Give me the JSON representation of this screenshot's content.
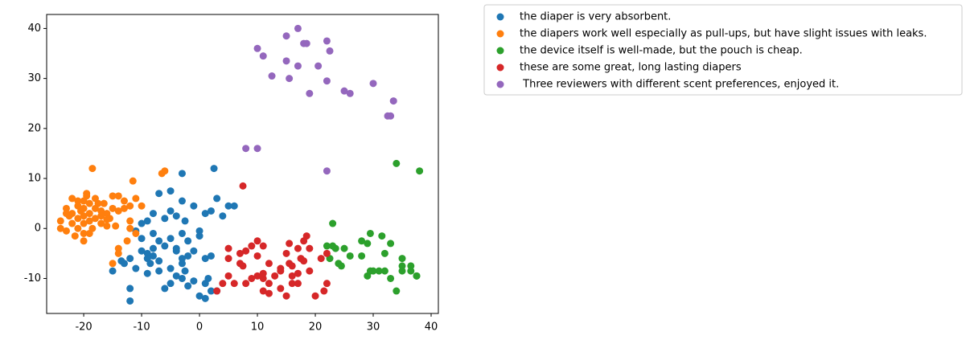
{
  "chart_data": {
    "type": "scatter",
    "xlim": [
      -26.4,
      41.25
    ],
    "ylim": [
      -17.0,
      42.8
    ],
    "xticks": [
      -20,
      -10,
      0,
      10,
      20,
      30,
      40
    ],
    "yticks": [
      -10,
      0,
      10,
      20,
      30,
      40
    ],
    "series": [
      {
        "name": "the diaper is very absorbent.",
        "color": "#1f77b4",
        "x": [
          -3,
          2.5,
          -5,
          -7,
          -3,
          -1,
          3,
          1,
          2,
          -9,
          -8,
          -6,
          -5,
          -4,
          -2.5,
          -10,
          -11,
          -10,
          -8,
          -7,
          -5,
          -3,
          0,
          0,
          -2,
          -4,
          -6,
          -8,
          -9,
          -10,
          -12,
          -13,
          -11,
          -9,
          -7,
          -5,
          -3,
          -2,
          -1,
          1,
          2,
          -3,
          -2.5,
          -4,
          -6,
          -5,
          -3,
          -1,
          -2,
          0,
          1,
          1,
          1.5,
          2,
          -12,
          -12,
          -15,
          -13.5,
          5,
          4,
          6,
          -8,
          -9,
          -8.5,
          -7,
          -4,
          3
        ],
        "y": [
          11,
          12,
          7.5,
          7,
          5.5,
          4.5,
          6,
          3,
          3.5,
          1.5,
          3,
          2,
          3.5,
          2.5,
          1.5,
          1,
          -0.5,
          -2,
          -1,
          -2.5,
          -2,
          -1,
          -0.5,
          -1.5,
          -2.5,
          -4,
          -3.5,
          -4,
          -5,
          -4.5,
          -6,
          -7,
          -8,
          -9,
          -6.5,
          -8,
          -6,
          -5.5,
          -4.5,
          -6,
          -5.5,
          -7,
          -8.5,
          -9.5,
          -12,
          -11,
          -10,
          -10.5,
          -11.5,
          -13.5,
          -14,
          -11,
          -10,
          -12.5,
          -14.5,
          -12,
          -8.5,
          -6.5,
          4.5,
          2.5,
          4.5,
          -5.5,
          -6,
          -7,
          -8.5,
          -4.5,
          -12.5
        ]
      },
      {
        "name": "the diapers work well especially as pull-ups, but have slight issues with leaks.",
        "color": "#ff7f0e",
        "x": [
          -18.5,
          -11.5,
          -6,
          -6.5,
          -24,
          -24,
          -23,
          -22,
          -22,
          -21,
          -21,
          -22,
          -20,
          -20,
          -20,
          -20,
          -20,
          -19.5,
          -19,
          -19,
          -19,
          -18.5,
          -18,
          -18,
          -17,
          -17,
          -16.5,
          -16,
          -16,
          -15,
          -15,
          -14,
          -14,
          -13,
          -13,
          -12,
          -12,
          -11,
          -10,
          -12.5,
          -12,
          -14,
          -14,
          -15,
          -11,
          -21,
          -22.5,
          -23,
          -21.5,
          -23,
          -17.5,
          -18,
          -19,
          -20.5,
          -17,
          -15.5,
          -16,
          -21,
          -20,
          -19.5,
          -14.5
        ],
        "y": [
          12,
          9.5,
          11.5,
          11,
          1.5,
          0,
          -0.5,
          1,
          3,
          2,
          5.5,
          6,
          4,
          2.5,
          1,
          -1,
          -2.5,
          6.5,
          5,
          3,
          1.5,
          0,
          4,
          2,
          3.5,
          1,
          5,
          3,
          0.5,
          6.5,
          4,
          6.5,
          3.5,
          5.5,
          4,
          4.5,
          1.5,
          6,
          4.5,
          -2.5,
          0,
          -4,
          -5,
          -7,
          -1,
          0,
          2.5,
          3,
          -1.5,
          4,
          5,
          6,
          -1,
          3.5,
          2.5,
          2,
          1.8,
          4.5,
          5.5,
          7,
          0.5
        ]
      },
      {
        "name": "the device itself is well-made, but the pouch is cheap.",
        "color": "#2ca02c",
        "x": [
          34,
          38,
          23,
          22,
          23,
          23.5,
          25,
          26,
          22.5,
          24,
          24.5,
          28,
          29,
          29.5,
          31.5,
          33,
          32,
          35,
          35,
          35,
          36.5,
          36.5,
          37.5,
          37.5,
          33,
          34,
          30,
          31,
          32,
          29.5,
          29,
          28
        ],
        "y": [
          13,
          11.5,
          1,
          -3.5,
          -3.5,
          -4,
          -4,
          -5.5,
          -6,
          -7,
          -7.5,
          -2.5,
          -3,
          -1,
          -1.5,
          -3,
          -5,
          -6,
          -7.5,
          -8.5,
          -7.5,
          -8.5,
          -9.5,
          -9.5,
          -10,
          -12.5,
          -8.5,
          -8.5,
          -8.5,
          -8.5,
          -9.5,
          -5.5
        ]
      },
      {
        "name": "these are some great, long lasting diapers",
        "color": "#d62728",
        "x": [
          7.5,
          5,
          7,
          8,
          9,
          10,
          11,
          5,
          7,
          7.5,
          10,
          12,
          14,
          15,
          15.5,
          17,
          18,
          18.5,
          19,
          15.5,
          16,
          17,
          17.5,
          18,
          19,
          14,
          13,
          12,
          11,
          10,
          9,
          8,
          6,
          5,
          11,
          12,
          14,
          15,
          17,
          16,
          20,
          21.5,
          22,
          21,
          22,
          4,
          3,
          11,
          16
        ],
        "y": [
          8.5,
          -4,
          -5,
          -4.5,
          -3.5,
          -2.5,
          -3.5,
          -6,
          -7,
          -7.5,
          -5.5,
          -7,
          -8,
          -5,
          -3,
          -4,
          -2.5,
          -1.5,
          -4,
          -7,
          -7.5,
          -9,
          -6,
          -6.5,
          -8.5,
          -8.5,
          -9.5,
          -11,
          -10,
          -9.5,
          -10,
          -11,
          -11,
          -9.5,
          -12.5,
          -13,
          -12,
          -13.5,
          -11,
          -11,
          -13.5,
          -12.5,
          -11,
          -6,
          -5,
          -11,
          -12.5,
          -9,
          -9.5
        ]
      },
      {
        "name": " Three reviewers with different scent preferences, enjoyed it.",
        "color": "#9467bd",
        "x": [
          10,
          11,
          15,
          17,
          18,
          18.5,
          20.5,
          22,
          22.5,
          15,
          17,
          12.5,
          15.5,
          22,
          19,
          25,
          26,
          30,
          33.5,
          32.5,
          33,
          8,
          10,
          22
        ],
        "y": [
          36,
          34.5,
          38.5,
          40,
          37,
          37,
          32.5,
          37.5,
          35.5,
          33.5,
          32.5,
          30.5,
          30,
          29.5,
          27,
          27.5,
          27,
          29,
          25.5,
          22.5,
          22.5,
          16,
          16,
          11.5
        ]
      }
    ]
  }
}
